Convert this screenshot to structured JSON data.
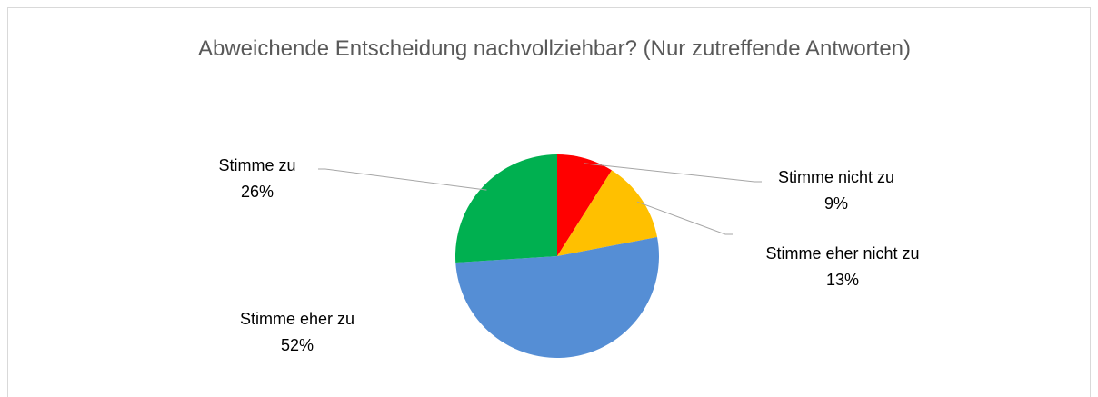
{
  "chart_data": {
    "type": "pie",
    "title": "Abweichende Entscheidung nachvollziehbar? (Nur zutreffende Antworten)",
    "categories": [
      "Stimme nicht zu",
      "Stimme eher nicht zu",
      "Stimme eher zu",
      "Stimme zu"
    ],
    "values": [
      9,
      13,
      52,
      26
    ],
    "value_labels": [
      "9%",
      "13%",
      "52%",
      "26%"
    ],
    "colors": [
      "#ff0000",
      "#ffc000",
      "#558ed5",
      "#00b050"
    ]
  }
}
